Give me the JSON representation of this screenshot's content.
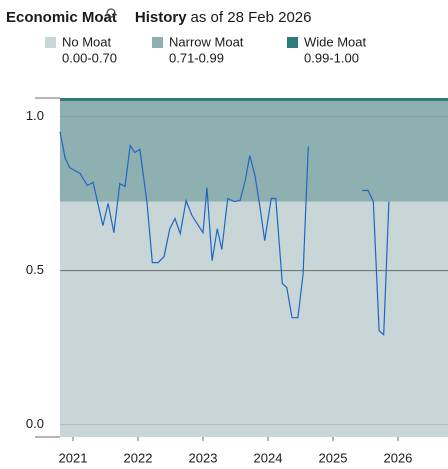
{
  "chart_data": {
    "type": "line",
    "title": "Economic Moat",
    "title_suffix": "History",
    "subtitle": "as of 28 Feb 2026",
    "bands": [
      {
        "name": "No Moat",
        "range": "0.00-0.70",
        "color": "#c9d6d8",
        "from": -0.04,
        "to": 0.724
      },
      {
        "name": "Narrow Moat",
        "range": "0.71-0.99",
        "color": "#8fb0b1",
        "from": 0.724,
        "to": 1.05
      },
      {
        "name": "Wide Moat",
        "range": "0.99-1.00",
        "color": "#2e7c7a",
        "from": 1.05,
        "to": 1.06
      }
    ],
    "color": "#1f66c4",
    "x": [
      2020.8,
      2020.88,
      2020.95,
      2021.11,
      2021.22,
      2021.31,
      2021.46,
      2021.54,
      2021.63,
      2021.72,
      2021.8,
      2021.88,
      2021.95,
      2022.03,
      2022.14,
      2022.22,
      2022.31,
      2022.4,
      2022.49,
      2022.57,
      2022.65,
      2022.74,
      2022.83,
      2022.92,
      2023.0,
      2023.06,
      2023.14,
      2023.22,
      2023.29,
      2023.38,
      2023.48,
      2023.57,
      2023.65,
      2023.72,
      2023.8,
      2023.88,
      2023.95,
      2024.05,
      2024.12,
      2024.22,
      2024.29,
      2024.37,
      2024.46,
      2024.54,
      2024.62,
      2025.0,
      2025.45,
      2025.54,
      2025.62,
      2025.71,
      2025.78,
      2025.86
    ],
    "values": [
      0.951,
      0.864,
      0.834,
      0.815,
      0.776,
      0.786,
      0.646,
      0.718,
      0.623,
      0.782,
      0.773,
      0.906,
      0.883,
      0.893,
      0.718,
      0.526,
      0.526,
      0.545,
      0.636,
      0.669,
      0.62,
      0.727,
      0.679,
      0.649,
      0.623,
      0.769,
      0.532,
      0.636,
      0.568,
      0.734,
      0.724,
      0.727,
      0.792,
      0.873,
      0.808,
      0.701,
      0.597,
      0.734,
      0.734,
      0.458,
      0.445,
      0.347,
      0.347,
      0.49,
      0.903,
      null,
      0.76,
      0.76,
      0.724,
      0.305,
      0.292,
      0.724
    ],
    "xlim": [
      2020.8,
      2026.77
    ],
    "xticks": [
      2021,
      2022,
      2023,
      2024,
      2025,
      2026
    ],
    "ylim": [
      -0.04,
      1.06
    ],
    "yticks": [
      {
        "value": 1.0,
        "label": "1.0"
      },
      {
        "value": 0.5,
        "label": "0.5"
      },
      {
        "value": 0.0,
        "label": "0.0"
      }
    ],
    "grid": true
  }
}
